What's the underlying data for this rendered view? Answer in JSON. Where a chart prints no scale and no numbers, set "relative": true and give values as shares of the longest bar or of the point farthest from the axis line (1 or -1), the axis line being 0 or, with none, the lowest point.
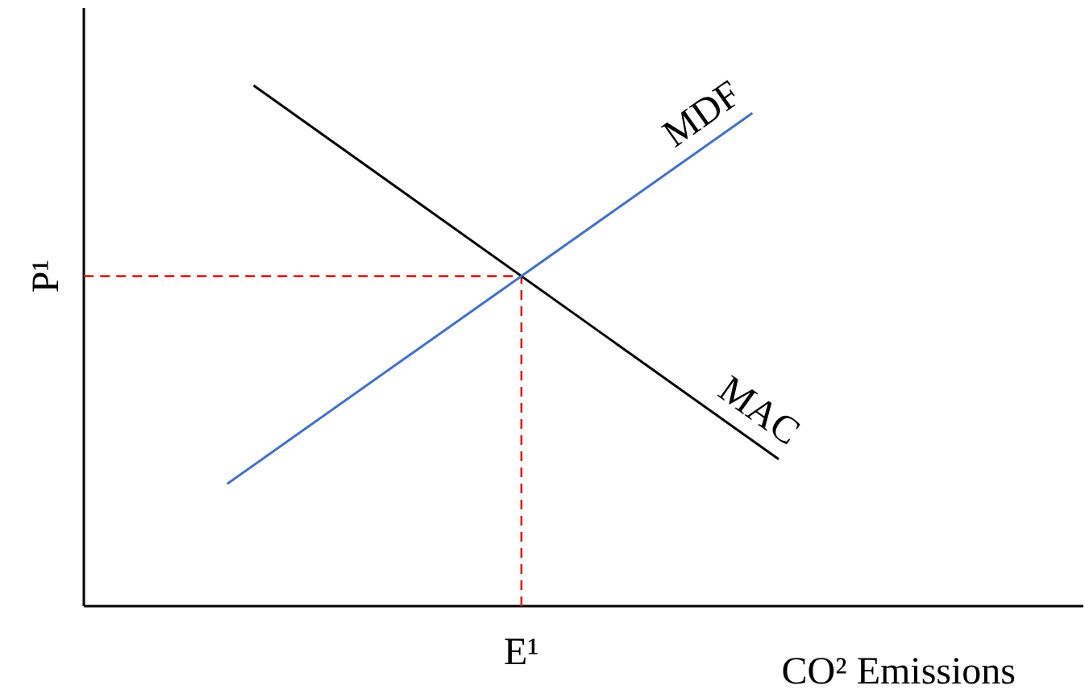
{
  "chart_data": {
    "type": "line",
    "relative": true,
    "xlabel": "CO² Emissions",
    "annotations": [
      "E¹",
      "P¹"
    ],
    "categories": [
      null,
      null,
      null,
      null,
      null,
      null,
      null,
      null,
      null,
      null,
      null,
      null,
      null,
      null,
      null,
      null,
      null,
      null,
      null,
      null,
      null,
      null
    ],
    "series": [
      {
        "name": "MAC",
        "color": "#000000",
        "values": [
          null,
          1,
          null,
          null,
          null,
          null,
          null,
          null,
          null,
          null,
          null,
          null,
          null,
          null,
          null,
          null,
          null,
          null,
          null,
          null,
          null,
          0.282
        ]
      },
      {
        "name": "MDF",
        "color": "#4472c4",
        "values": [
          0.235,
          null,
          null,
          null,
          null,
          null,
          null,
          null,
          null,
          null,
          null,
          null,
          null,
          null,
          null,
          null,
          null,
          null,
          null,
          null,
          0.947,
          null
        ]
      }
    ]
  }
}
